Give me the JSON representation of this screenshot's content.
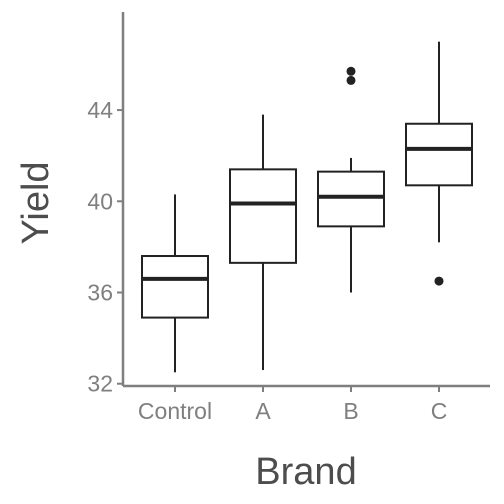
{
  "chart_data": {
    "type": "boxplot",
    "xlabel": "Brand",
    "ylabel": "Yield",
    "categories": [
      "Control",
      "A",
      "B",
      "C"
    ],
    "ylim": [
      31.9,
      48.3
    ],
    "yticks": [
      32,
      36,
      40,
      44
    ],
    "grid": false,
    "boxes": [
      {
        "name": "Control",
        "whisker_low": 32.5,
        "q1": 34.9,
        "median": 36.6,
        "q3": 37.6,
        "whisker_high": 40.3,
        "outliers": []
      },
      {
        "name": "A",
        "whisker_low": 32.6,
        "q1": 37.3,
        "median": 39.9,
        "q3": 41.4,
        "whisker_high": 43.8,
        "outliers": []
      },
      {
        "name": "B",
        "whisker_low": 36.0,
        "q1": 38.9,
        "median": 40.2,
        "q3": 41.3,
        "whisker_high": 41.9,
        "outliers": [
          45.3,
          45.7
        ]
      },
      {
        "name": "C",
        "whisker_low": 38.2,
        "q1": 40.7,
        "median": 42.3,
        "q3": 43.4,
        "whisker_high": 47.0,
        "outliers": [
          36.5
        ]
      }
    ]
  }
}
